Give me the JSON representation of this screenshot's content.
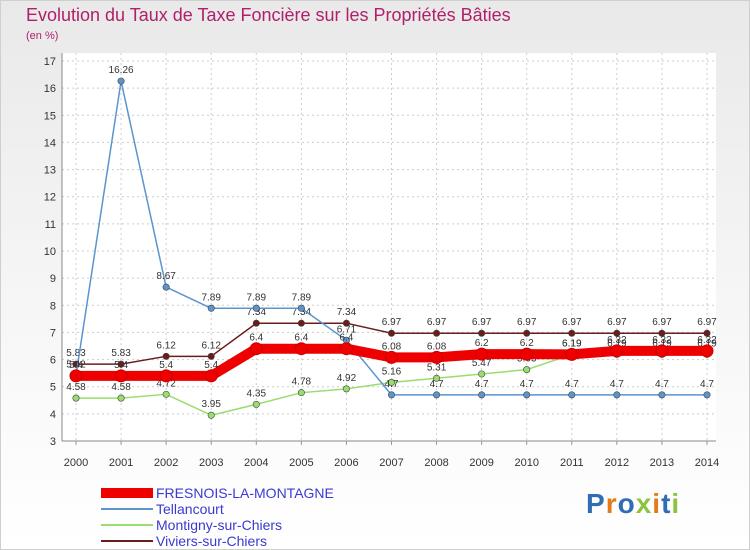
{
  "title": "Evolution du Taux de Taxe Foncière sur les Propriétés Bâties",
  "unit_label": "(en %)",
  "logo": {
    "text": "Proxiti",
    "colors": [
      "#2f6db5",
      "#e37b1b",
      "#2f6db5",
      "#8cc43f",
      "#e37b1b",
      "#2f6db5",
      "#8cc43f"
    ]
  },
  "chart_data": {
    "type": "line",
    "title": "Evolution du Taux de Taxe Foncière sur les Propriétés Bâties",
    "ylabel": "(en %)",
    "xlabel": "",
    "ylim": [
      3,
      17
    ],
    "yticks": [
      "3",
      "4",
      "5",
      "6",
      "7",
      "8",
      "9",
      "10",
      "11",
      "12",
      "13",
      "14",
      "15",
      "16",
      "17"
    ],
    "x": [
      "2000",
      "2001",
      "2002",
      "2003",
      "2004",
      "2005",
      "2006",
      "2007",
      "2008",
      "2009",
      "2010",
      "2011",
      "2012",
      "2013",
      "2014"
    ],
    "legend_position": "bottom-left",
    "series": [
      {
        "name": "Viviers-sur-Chiers",
        "color": "#6b1c1c",
        "values": [
          5.83,
          5.83,
          6.12,
          6.12,
          7.34,
          7.34,
          7.34,
          6.97,
          6.97,
          6.97,
          6.97,
          6.97,
          6.97,
          6.97,
          6.97
        ],
        "labels": [
          "5.83",
          "5.83",
          "6.12",
          "6.12",
          "7.34",
          "7.34",
          "7.34",
          "6.97",
          "6.97",
          "6.97",
          "6.97",
          "6.97",
          "6.97",
          "6.97",
          "6.97"
        ]
      },
      {
        "name": "Montigny-sur-Chiers",
        "color": "#99dd6e",
        "values": [
          4.58,
          4.58,
          4.72,
          3.95,
          4.35,
          4.78,
          4.92,
          5.16,
          5.31,
          5.47,
          5.63,
          6.19,
          6.19,
          6.19,
          6.19
        ],
        "labels": [
          "4.58",
          "4.58",
          "4.72",
          "3.95",
          "4.35",
          "4.78",
          "4.92",
          "5.16",
          "5.31",
          "5.47",
          "5.63",
          "6.19",
          "6.19",
          "6.19",
          "6.19"
        ]
      },
      {
        "name": "Tellancourt",
        "color": "#5b94cf",
        "values": [
          5.42,
          16.26,
          8.67,
          7.89,
          7.89,
          7.89,
          6.71,
          4.7,
          4.7,
          4.7,
          4.7,
          4.7,
          4.7,
          4.7,
          4.7
        ],
        "labels": [
          "5.42",
          "16.26",
          "8.67",
          "7.89",
          "7.89",
          "7.89",
          "6.71",
          "4.7",
          "4.7",
          "4.7",
          "4.7",
          "4.7",
          "4.7",
          "4.7",
          "4.7"
        ]
      },
      {
        "name": "FRESNOIS-LA-MONTAGNE",
        "color": "#ee0000",
        "values": [
          5.4,
          5.4,
          5.4,
          5.4,
          6.4,
          6.4,
          6.4,
          6.08,
          6.08,
          6.2,
          6.2,
          6.19,
          6.32,
          6.32,
          6.32
        ],
        "labels": [
          "5.4",
          "5.4",
          "5.4",
          "5.4",
          "6.4",
          "6.4",
          "6.4",
          "6.08",
          "6.08",
          "6.2",
          "6.2",
          "6.19",
          "6.32",
          "6.32",
          "6.32"
        ]
      }
    ]
  },
  "legend": [
    {
      "name": "FRESNOIS-LA-MONTAGNE",
      "color": "#ee0000"
    },
    {
      "name": "Tellancourt",
      "color": "#5b94cf"
    },
    {
      "name": "Montigny-sur-Chiers",
      "color": "#99dd6e"
    },
    {
      "name": "Viviers-sur-Chiers",
      "color": "#6b1c1c"
    }
  ]
}
